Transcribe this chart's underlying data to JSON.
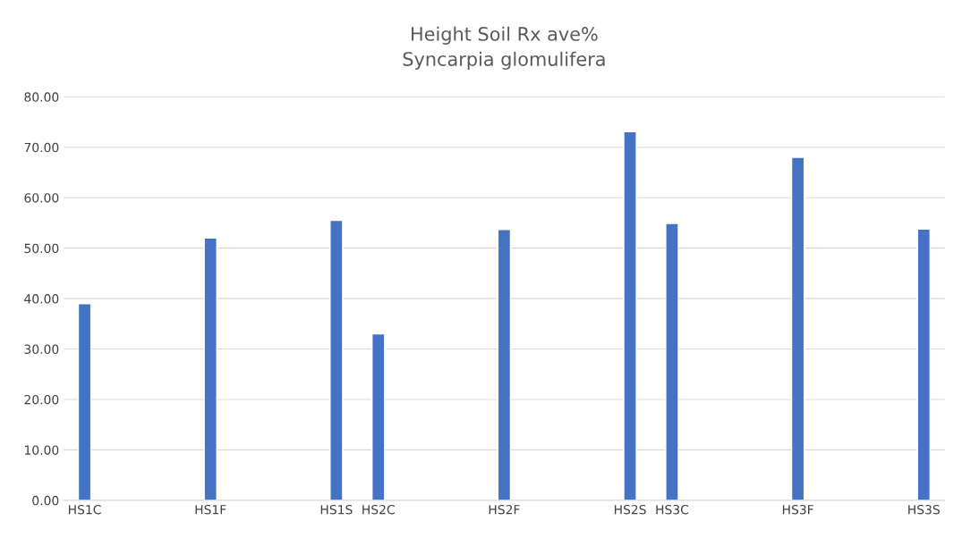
{
  "chart_data": {
    "type": "bar",
    "title": "Height Soil Rx ave%\nSyncarpia glomulifera",
    "categories": [
      "HS1C",
      null,
      null,
      "HS1F",
      null,
      null,
      "HS1S",
      "HS2C",
      null,
      null,
      "HS2F",
      null,
      null,
      "HS2S",
      "HS3C",
      null,
      null,
      "HS3F",
      null,
      null,
      "HS3S"
    ],
    "values": [
      39.0,
      null,
      null,
      52.0,
      null,
      null,
      55.5,
      33.0,
      null,
      null,
      53.7,
      null,
      null,
      73.1,
      54.9,
      null,
      null,
      68.0,
      null,
      null,
      53.8
    ],
    "color": "#4472c4",
    "ylim": [
      0,
      80
    ],
    "yticks": [
      {
        "value": 0,
        "label": "0.00"
      },
      {
        "value": 10,
        "label": "10.00"
      },
      {
        "value": 20,
        "label": "20.00"
      },
      {
        "value": 30,
        "label": "30.00"
      },
      {
        "value": 40,
        "label": "40.00"
      },
      {
        "value": 50,
        "label": "50.00"
      },
      {
        "value": 60,
        "label": "60.00"
      },
      {
        "value": 70,
        "label": "70.00"
      },
      {
        "value": 80,
        "label": "80.00"
      }
    ],
    "grid": "y"
  }
}
